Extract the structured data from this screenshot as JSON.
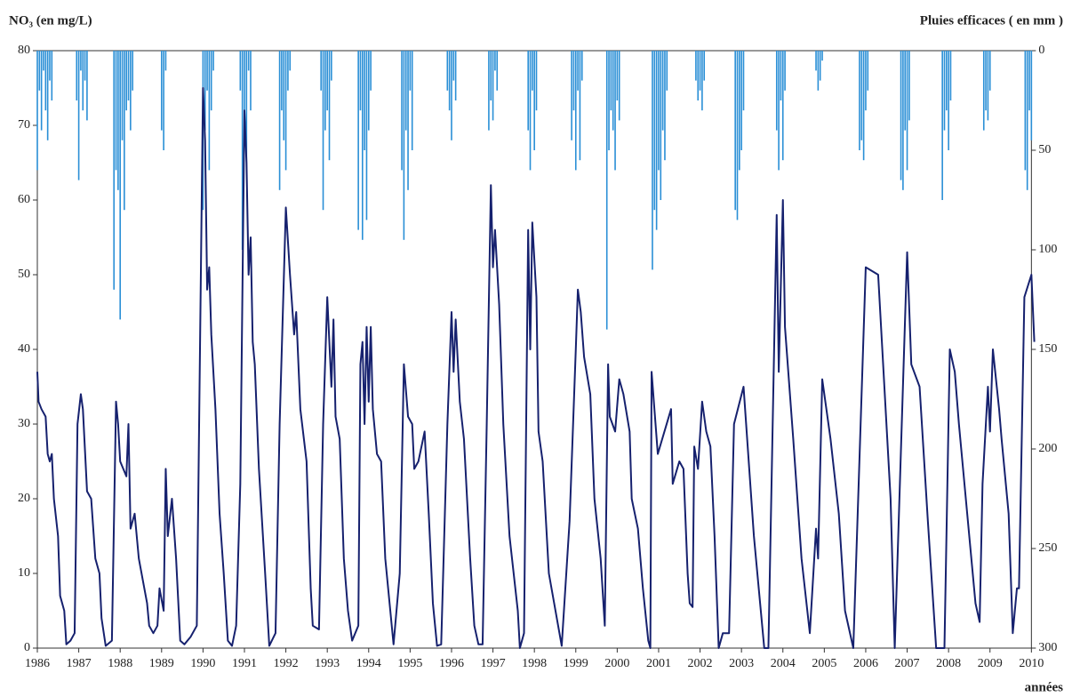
{
  "chart_data": {
    "type": "line",
    "y_label": "NO₃ (en mg/L)",
    "y2_label": "Pluies efficaces ( en mm )",
    "x_label": "années",
    "xlim": [
      1986,
      2010.1
    ],
    "xticks": [
      1986,
      1987,
      1988,
      1989,
      1990,
      1991,
      1992,
      1993,
      1994,
      1995,
      1996,
      1997,
      1998,
      1999,
      2000,
      2001,
      2002,
      2003,
      2004,
      2005,
      2006,
      2007,
      2008,
      2009,
      2010
    ],
    "ylim": [
      0,
      80
    ],
    "yticks": [
      0,
      10,
      20,
      30,
      40,
      50,
      60,
      70,
      80
    ],
    "y2lim": [
      0,
      300
    ],
    "y2ticks": [
      0,
      50,
      100,
      150,
      200,
      250,
      300
    ],
    "y2_inverted": true,
    "grid": false,
    "series": [
      {
        "type": "line",
        "color": "#16216e",
        "x": [
          1986.0,
          1986.03,
          1986.1,
          1986.2,
          1986.25,
          1986.3,
          1986.35,
          1986.4,
          1986.5,
          1986.55,
          1986.65,
          1986.7,
          1986.8,
          1986.9,
          1986.97,
          1987.05,
          1987.1,
          1987.2,
          1987.3,
          1987.4,
          1987.5,
          1987.55,
          1987.65,
          1987.8,
          1987.9,
          1987.95,
          1988.0,
          1988.15,
          1988.2,
          1988.25,
          1988.35,
          1988.45,
          1988.55,
          1988.65,
          1988.7,
          1988.8,
          1988.9,
          1988.95,
          1989.05,
          1989.1,
          1989.15,
          1989.25,
          1989.35,
          1989.45,
          1989.55,
          1989.7,
          1989.85,
          1990.0,
          1990.05,
          1990.1,
          1990.15,
          1990.2,
          1990.3,
          1990.4,
          1990.5,
          1990.6,
          1990.7,
          1990.8,
          1990.9,
          1991.0,
          1991.05,
          1991.1,
          1991.15,
          1991.2,
          1991.25,
          1991.35,
          1991.5,
          1991.6,
          1991.75,
          1991.85,
          1992.0,
          1992.1,
          1992.2,
          1992.25,
          1992.35,
          1992.5,
          1992.6,
          1992.65,
          1992.8,
          1992.9,
          1993.0,
          1993.1,
          1993.15,
          1993.2,
          1993.3,
          1993.4,
          1993.5,
          1993.6,
          1993.75,
          1993.8,
          1993.85,
          1993.9,
          1993.95,
          1994.0,
          1994.05,
          1994.1,
          1994.2,
          1994.3,
          1994.4,
          1994.6,
          1994.75,
          1994.85,
          1994.95,
          1995.05,
          1995.1,
          1995.2,
          1995.35,
          1995.45,
          1995.55,
          1995.65,
          1995.75,
          1995.9,
          1996.0,
          1996.05,
          1996.1,
          1996.2,
          1996.3,
          1996.45,
          1996.55,
          1996.65,
          1996.75,
          1996.85,
          1996.95,
          1997.0,
          1997.05,
          1997.15,
          1997.25,
          1997.4,
          1997.6,
          1997.65,
          1997.75,
          1997.85,
          1997.9,
          1997.95,
          1998.05,
          1998.1,
          1998.2,
          1998.35,
          1998.66,
          1998.85,
          1999.0,
          1999.05,
          1999.12,
          1999.2,
          1999.35,
          1999.45,
          1999.6,
          1999.7,
          1999.78,
          1999.82,
          1999.95,
          2000.05,
          2000.15,
          2000.3,
          2000.35,
          2000.5,
          2000.62,
          2000.75,
          2000.8,
          2000.83,
          2000.98,
          2001.3,
          2001.34,
          2001.5,
          2001.6,
          2001.7,
          2001.75,
          2001.82,
          2001.86,
          2001.95,
          2002.05,
          2002.15,
          2002.25,
          2002.35,
          2002.45,
          2002.55,
          2002.7,
          2002.82,
          2003.05,
          2003.3,
          2003.55,
          2003.65,
          2003.85,
          2003.9,
          2004.0,
          2004.05,
          2004.25,
          2004.45,
          2004.65,
          2004.8,
          2004.85,
          2004.95,
          2005.15,
          2005.35,
          2005.5,
          2005.7,
          2006.0,
          2006.3,
          2006.6,
          2006.7,
          2007.0,
          2007.1,
          2007.3,
          2007.5,
          2007.7,
          2007.9,
          2008.03,
          2008.15,
          2008.25,
          2008.45,
          2008.65,
          2008.75,
          2008.82,
          2008.95,
          2009.0,
          2009.07,
          2009.22,
          2009.28,
          2009.45,
          2009.55,
          2009.65,
          2009.7,
          2009.83,
          2010.0,
          2010.07
        ],
        "values": [
          37,
          33,
          32,
          31,
          26,
          25,
          26,
          20,
          15,
          7,
          5,
          0.5,
          1,
          2,
          30,
          34,
          32,
          21,
          20,
          12,
          10,
          4,
          0.3,
          1,
          33,
          30,
          25,
          23,
          30,
          16,
          18,
          12,
          9,
          6,
          3,
          2,
          3,
          8,
          5,
          24,
          15,
          20,
          12,
          1,
          0.5,
          1.5,
          3,
          75,
          68,
          48,
          51,
          42,
          32,
          18,
          10,
          1,
          0.3,
          3,
          22,
          72,
          65,
          50,
          55,
          41,
          38,
          24,
          10,
          0.3,
          2,
          30,
          59,
          50,
          42,
          45,
          32,
          25,
          8,
          3,
          2.5,
          30,
          47,
          35,
          44,
          31,
          28,
          12,
          5,
          1,
          3,
          38,
          41,
          30,
          43,
          33,
          43,
          32,
          26,
          25,
          12,
          0.5,
          10,
          38,
          31,
          30,
          24,
          25,
          29,
          18,
          6,
          0.3,
          0.5,
          30,
          45,
          37,
          44,
          33,
          28,
          12,
          3,
          0.5,
          0.5,
          30,
          62,
          51,
          56,
          46,
          30,
          15,
          5,
          0,
          2,
          56,
          40,
          57,
          47,
          29,
          25,
          10,
          0.3,
          17,
          40,
          48,
          45,
          39,
          34,
          20,
          12,
          3,
          38,
          31,
          29,
          36,
          34,
          29,
          20,
          16,
          8,
          1,
          0,
          37,
          26,
          32,
          22,
          25,
          24,
          10,
          6,
          5.5,
          27,
          24,
          33,
          29,
          27,
          15,
          0,
          2,
          2,
          30,
          35,
          15,
          0,
          0,
          58,
          37,
          60,
          43,
          28,
          12,
          2,
          16,
          12,
          36,
          28,
          18,
          5,
          0,
          51,
          50,
          20,
          0,
          53,
          38,
          35,
          17,
          0,
          0,
          40,
          37,
          30,
          18,
          6,
          3.5,
          22,
          35,
          29,
          40,
          32,
          28,
          18,
          2,
          8,
          8,
          47,
          50,
          41
        ]
      },
      {
        "type": "bar",
        "axis": "y2",
        "color": "#2a8fd6",
        "x": [
          1986.0,
          1986.05,
          1986.1,
          1986.15,
          1986.2,
          1986.25,
          1986.3,
          1986.35,
          1986.95,
          1987.0,
          1987.05,
          1987.1,
          1987.15,
          1987.2,
          1987.85,
          1987.9,
          1987.95,
          1988.0,
          1988.05,
          1988.1,
          1988.15,
          1988.2,
          1988.25,
          1988.3,
          1989.0,
          1989.05,
          1989.1,
          1990.0,
          1990.05,
          1990.1,
          1990.15,
          1990.2,
          1990.25,
          1990.9,
          1990.95,
          1991.0,
          1991.05,
          1991.1,
          1991.15,
          1991.85,
          1991.9,
          1991.95,
          1992.0,
          1992.05,
          1992.1,
          1992.85,
          1992.9,
          1992.95,
          1993.0,
          1993.05,
          1993.1,
          1993.75,
          1993.8,
          1993.85,
          1993.9,
          1993.95,
          1994.0,
          1994.05,
          1994.8,
          1994.85,
          1994.9,
          1994.95,
          1995.0,
          1995.05,
          1995.9,
          1995.95,
          1996.0,
          1996.05,
          1996.1,
          1996.9,
          1996.95,
          1997.0,
          1997.05,
          1997.1,
          1997.85,
          1997.9,
          1997.95,
          1998.0,
          1998.05,
          1998.9,
          1998.95,
          1999.0,
          1999.05,
          1999.1,
          1999.15,
          1999.75,
          1999.8,
          1999.85,
          1999.9,
          1999.95,
          2000.0,
          2000.05,
          2000.85,
          2000.9,
          2000.95,
          2001.0,
          2001.05,
          2001.1,
          2001.15,
          2001.2,
          2001.9,
          2001.95,
          2002.0,
          2002.05,
          2002.1,
          2002.85,
          2002.9,
          2002.95,
          2003.0,
          2003.05,
          2003.85,
          2003.9,
          2003.95,
          2004.0,
          2004.05,
          2004.8,
          2004.85,
          2004.9,
          2004.95,
          2005.85,
          2005.9,
          2005.95,
          2006.0,
          2006.05,
          2006.85,
          2006.9,
          2006.95,
          2007.0,
          2007.05,
          2007.85,
          2007.9,
          2007.95,
          2008.0,
          2008.05,
          2008.85,
          2008.9,
          2008.95,
          2009.0,
          2009.85,
          2009.9,
          2009.95,
          2010.0
        ],
        "values": [
          60,
          20,
          40,
          10,
          30,
          45,
          15,
          25,
          25,
          65,
          10,
          30,
          15,
          35,
          120,
          60,
          70,
          135,
          45,
          80,
          30,
          25,
          40,
          20,
          40,
          50,
          10,
          80,
          40,
          20,
          60,
          30,
          10,
          20,
          100,
          40,
          60,
          10,
          30,
          70,
          30,
          45,
          60,
          20,
          10,
          20,
          80,
          40,
          30,
          55,
          15,
          90,
          30,
          95,
          50,
          85,
          40,
          20,
          60,
          95,
          40,
          70,
          20,
          50,
          20,
          30,
          45,
          15,
          25,
          40,
          25,
          35,
          10,
          20,
          40,
          60,
          20,
          50,
          30,
          45,
          30,
          60,
          20,
          55,
          15,
          140,
          50,
          30,
          40,
          60,
          25,
          35,
          110,
          80,
          90,
          60,
          75,
          40,
          55,
          20,
          15,
          25,
          20,
          30,
          15,
          80,
          85,
          60,
          50,
          30,
          40,
          60,
          25,
          55,
          20,
          10,
          20,
          15,
          5,
          50,
          45,
          55,
          30,
          20,
          65,
          70,
          40,
          60,
          35,
          75,
          40,
          30,
          50,
          25,
          40,
          30,
          35,
          20,
          60,
          70,
          30,
          45
        ]
      }
    ]
  }
}
